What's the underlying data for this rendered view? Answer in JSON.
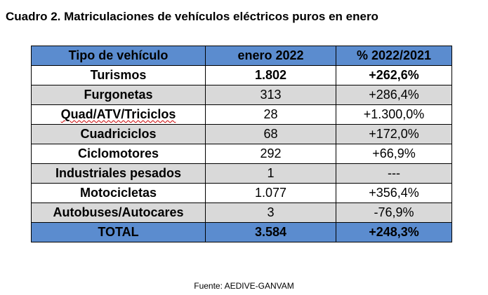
{
  "title": "Cuadro 2. Matriculaciones de vehículos eléctricos puros en enero",
  "table": {
    "headers": [
      "Tipo de vehículo",
      "enero 2022",
      "% 2022/2021"
    ],
    "rows": [
      {
        "type": "Turismos",
        "value": "1.802",
        "change": "+262,6%"
      },
      {
        "type": "Furgonetas",
        "value": "313",
        "change": "+286,4%"
      },
      {
        "type": "Quad/ATV/Triciclos",
        "value": "28",
        "change": "+1.300,0%"
      },
      {
        "type": "Cuadriciclos",
        "value": "68",
        "change": "+172,0%"
      },
      {
        "type": "Ciclomotores",
        "value": "292",
        "change": "+66,9%"
      },
      {
        "type": "Industriales pesados",
        "value": "1",
        "change": "---"
      },
      {
        "type": "Motocicletas",
        "value": "1.077",
        "change": "+356,4%"
      },
      {
        "type": "Autobuses/Autocares",
        "value": "3",
        "change": "-76,9%"
      }
    ],
    "total": {
      "type": "TOTAL",
      "value": "3.584",
      "change": "+248,3%"
    }
  },
  "source": "Fuente: AEDIVE-GANVAM",
  "colors": {
    "header_fill": "#5b8ccf",
    "shaded_row_fill": "#d9d9d9",
    "spellcheck_underline": "#cc0000"
  }
}
